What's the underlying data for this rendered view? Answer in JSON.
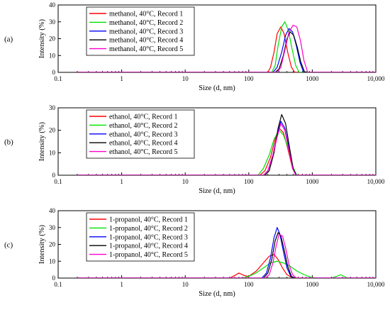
{
  "chart_data": [
    {
      "type": "line",
      "panel_label": "(a)",
      "xlabel": "Size (d, nm)",
      "ylabel": "Intensity (%)",
      "xscale": "log",
      "xlim": [
        0.1,
        10000
      ],
      "ylim": [
        0,
        40
      ],
      "xticks": [
        "0.1",
        "1",
        "10",
        "100",
        "1000",
        "10,000"
      ],
      "yticks": [
        0,
        10,
        20,
        30,
        40
      ],
      "grid": false,
      "legend_position": "top-left",
      "series": [
        {
          "name": "methanol, 40°C, Record 1",
          "color": "#ff0000",
          "x": [
            0.2,
            200,
            220,
            250,
            280,
            320,
            360,
            410,
            470,
            530,
            10000
          ],
          "y": [
            0,
            0,
            3,
            12,
            23,
            27,
            23,
            12,
            3,
            0,
            0
          ]
        },
        {
          "name": "methanol, 40°C, Record 2",
          "color": "#00e000",
          "x": [
            0.2,
            230,
            260,
            290,
            330,
            370,
            420,
            480,
            550,
            620,
            10000
          ],
          "y": [
            0,
            0,
            4,
            16,
            27,
            30,
            25,
            14,
            4,
            0,
            0
          ]
        },
        {
          "name": "methanol, 40°C, Record 3",
          "color": "#0000ff",
          "x": [
            0.2,
            240,
            280,
            330,
            380,
            430,
            490,
            560,
            640,
            730,
            10000
          ],
          "y": [
            0,
            0,
            3,
            12,
            22,
            26,
            24,
            16,
            6,
            0,
            0
          ]
        },
        {
          "name": "methanol, 40°C, Record 4",
          "color": "#000000",
          "x": [
            0.2,
            260,
            300,
            350,
            400,
            450,
            510,
            580,
            660,
            760,
            10000
          ],
          "y": [
            0,
            0,
            2,
            10,
            20,
            24,
            22,
            15,
            6,
            0,
            0
          ]
        },
        {
          "name": "methanol, 40°C, Record 5",
          "color": "#ff00cc",
          "x": [
            0.2,
            280,
            320,
            370,
            430,
            500,
            570,
            650,
            740,
            850,
            10000
          ],
          "y": [
            0,
            0,
            3,
            13,
            24,
            28,
            27,
            19,
            7,
            0,
            0
          ]
        }
      ]
    },
    {
      "type": "line",
      "panel_label": "(b)",
      "xlabel": "Size (d, nm)",
      "ylabel": "Intensity (%)",
      "xscale": "log",
      "xlim": [
        0.1,
        10000
      ],
      "ylim": [
        0,
        30
      ],
      "xticks": [
        "0.1",
        "1",
        "10",
        "100",
        "1000",
        "10,000"
      ],
      "yticks": [
        0,
        10,
        20,
        30
      ],
      "grid": false,
      "legend_position": "top-left",
      "series": [
        {
          "name": "ethanol, 40°C, Record 1",
          "color": "#ff0000",
          "x": [
            0.2,
            150,
            180,
            220,
            260,
            300,
            350,
            410,
            480,
            560,
            10000
          ],
          "y": [
            0,
            0,
            2,
            8,
            16,
            21,
            19,
            12,
            4,
            0,
            0
          ]
        },
        {
          "name": "ethanol, 40°C, Record 2",
          "color": "#00e000",
          "x": [
            0.2,
            140,
            170,
            210,
            250,
            300,
            350,
            420,
            490,
            570,
            10000
          ],
          "y": [
            0,
            0,
            3,
            9,
            16,
            20,
            18,
            12,
            4,
            0,
            0
          ]
        },
        {
          "name": "ethanol, 40°C, Record 3",
          "color": "#0000ff",
          "x": [
            0.2,
            170,
            200,
            240,
            280,
            320,
            370,
            430,
            490,
            550,
            10000
          ],
          "y": [
            0,
            0,
            2,
            9,
            18,
            24,
            21,
            12,
            3,
            0,
            0
          ]
        },
        {
          "name": "ethanol, 40°C, Record 4",
          "color": "#000000",
          "x": [
            0.2,
            180,
            210,
            250,
            290,
            330,
            380,
            440,
            500,
            560,
            10000
          ],
          "y": [
            0,
            0,
            2,
            10,
            21,
            27,
            23,
            12,
            3,
            0,
            0
          ]
        },
        {
          "name": "ethanol, 40°C, Record 5",
          "color": "#ff00cc",
          "x": [
            0.2,
            170,
            200,
            240,
            280,
            320,
            370,
            430,
            490,
            550,
            10000
          ],
          "y": [
            0,
            0,
            2,
            9,
            17,
            23,
            20,
            11,
            3,
            0,
            0
          ]
        }
      ]
    },
    {
      "type": "line",
      "panel_label": "(c)",
      "xlabel": "Size (d, nm)",
      "ylabel": "Intensity (%)",
      "xscale": "log",
      "xlim": [
        0.1,
        10000
      ],
      "ylim": [
        0,
        40
      ],
      "xticks": [
        "0.1",
        "1",
        "10",
        "100",
        "1000",
        "10,000"
      ],
      "yticks": [
        0,
        10,
        20,
        30,
        40
      ],
      "grid": false,
      "legend_position": "top-left",
      "series": [
        {
          "name": "1-propanol, 40°C, Record 1",
          "color": "#ff0000",
          "x": [
            0.2,
            50,
            60,
            70,
            85,
            100,
            130,
            170,
            210,
            250,
            290,
            340,
            400,
            470,
            550,
            10000
          ],
          "y": [
            0,
            0,
            1.5,
            3,
            1.5,
            1,
            4,
            9,
            13,
            14,
            11,
            6,
            2,
            0.5,
            0,
            0
          ]
        },
        {
          "name": "1-propanol, 40°C, Record 2",
          "color": "#00e000",
          "x": [
            0.2,
            80,
            100,
            130,
            170,
            220,
            280,
            350,
            450,
            580,
            750,
            950,
            1150,
            1400,
            2000,
            2400,
            2800,
            3200,
            3600,
            10000
          ],
          "y": [
            0,
            0,
            1,
            3,
            6,
            9,
            10,
            9,
            7,
            4,
            2,
            0.5,
            0,
            0,
            0,
            1,
            2,
            1,
            0,
            0
          ]
        },
        {
          "name": "1-propanol, 40°C, Record 3",
          "color": "#0000ff",
          "x": [
            0.2,
            160,
            190,
            220,
            250,
            280,
            310,
            350,
            400,
            460,
            520,
            10000
          ],
          "y": [
            0,
            0,
            3,
            12,
            24,
            30,
            26,
            16,
            6,
            1,
            0,
            0
          ]
        },
        {
          "name": "1-propanol, 40°C, Record 4",
          "color": "#000000",
          "x": [
            0.2,
            170,
            200,
            230,
            260,
            290,
            320,
            360,
            410,
            470,
            530,
            10000
          ],
          "y": [
            0,
            0,
            3,
            11,
            22,
            27,
            25,
            17,
            7,
            1,
            0,
            0
          ]
        },
        {
          "name": "1-propanol, 40°C, Record 5",
          "color": "#ff00cc",
          "x": [
            0.2,
            180,
            210,
            240,
            270,
            300,
            340,
            380,
            430,
            490,
            560,
            10000
          ],
          "y": [
            0,
            0,
            2,
            9,
            19,
            26,
            25,
            18,
            8,
            2,
            0,
            0
          ]
        }
      ]
    }
  ]
}
